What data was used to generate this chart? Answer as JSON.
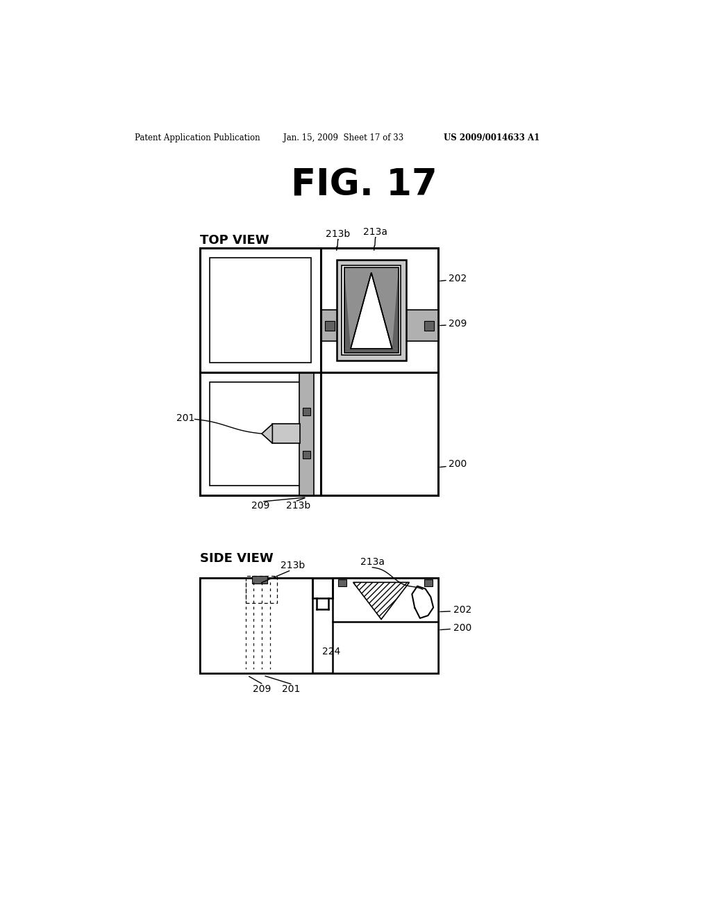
{
  "header_left": "Patent Application Publication",
  "header_mid": "Jan. 15, 2009  Sheet 17 of 33",
  "header_right": "US 2009/0014633 A1",
  "fig_title": "FIG. 17",
  "top_view_label": "TOP VIEW",
  "side_view_label": "SIDE VIEW",
  "bg_color": "#ffffff",
  "line_color": "#000000",
  "gray_light": "#c8c8c8",
  "gray_med": "#a8a8a8",
  "gray_dark": "#606060",
  "gray_band": "#b0b0b0",
  "gray_inner": "#909090"
}
